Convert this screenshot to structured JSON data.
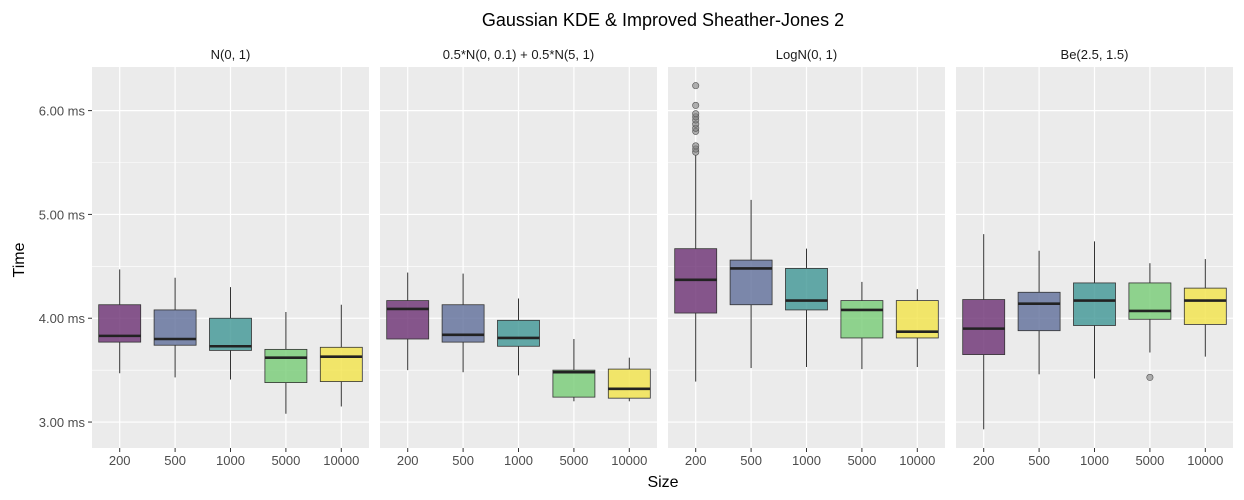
{
  "chart_data": {
    "type": "box",
    "title": "Gaussian KDE & Improved Sheather-Jones 2",
    "xlabel": "Size",
    "ylabel": "Time",
    "categories": [
      "200",
      "500",
      "1000",
      "5000",
      "10000"
    ],
    "y_unit": "ms",
    "y_ticks": [
      "3.00 ms",
      "4.00 ms",
      "5.00 ms",
      "6.00 ms"
    ],
    "y_tick_values": [
      3.0,
      4.0,
      5.0,
      6.0
    ],
    "ylim": [
      2.75,
      6.42
    ],
    "grid": true,
    "colors": [
      "#6b2f73",
      "#5f6e9a",
      "#3e9695",
      "#77cc75",
      "#f3e449"
    ],
    "panels": [
      {
        "label": "N(0, 1)",
        "boxes": [
          {
            "x": "200",
            "whisker_low": 3.47,
            "q1": 3.77,
            "median": 3.83,
            "q3": 4.13,
            "whisker_high": 4.47,
            "outliers": []
          },
          {
            "x": "500",
            "whisker_low": 3.43,
            "q1": 3.74,
            "median": 3.8,
            "q3": 4.08,
            "whisker_high": 4.39,
            "outliers": []
          },
          {
            "x": "1000",
            "whisker_low": 3.41,
            "q1": 3.69,
            "median": 3.73,
            "q3": 4.0,
            "whisker_high": 4.3,
            "outliers": []
          },
          {
            "x": "5000",
            "whisker_low": 3.08,
            "q1": 3.38,
            "median": 3.62,
            "q3": 3.7,
            "whisker_high": 4.06,
            "outliers": []
          },
          {
            "x": "10000",
            "whisker_low": 3.15,
            "q1": 3.39,
            "median": 3.63,
            "q3": 3.72,
            "whisker_high": 4.13,
            "outliers": []
          }
        ]
      },
      {
        "label": "0.5*N(0, 0.1) + 0.5*N(5, 1)",
        "boxes": [
          {
            "x": "200",
            "whisker_low": 3.5,
            "q1": 3.8,
            "median": 4.09,
            "q3": 4.17,
            "whisker_high": 4.44,
            "outliers": []
          },
          {
            "x": "500",
            "whisker_low": 3.48,
            "q1": 3.77,
            "median": 3.84,
            "q3": 4.13,
            "whisker_high": 4.43,
            "outliers": []
          },
          {
            "x": "1000",
            "whisker_low": 3.45,
            "q1": 3.73,
            "median": 3.81,
            "q3": 3.98,
            "whisker_high": 4.19,
            "outliers": []
          },
          {
            "x": "5000",
            "whisker_low": 3.2,
            "q1": 3.24,
            "median": 3.48,
            "q3": 3.5,
            "whisker_high": 3.8,
            "outliers": []
          },
          {
            "x": "10000",
            "whisker_low": 3.2,
            "q1": 3.23,
            "median": 3.32,
            "q3": 3.51,
            "whisker_high": 3.62,
            "outliers": []
          }
        ]
      },
      {
        "label": "LogN(0, 1)",
        "boxes": [
          {
            "x": "200",
            "whisker_low": 3.39,
            "q1": 4.05,
            "median": 4.37,
            "q3": 4.67,
            "whisker_high": 5.57,
            "outliers": [
              5.6,
              5.63,
              5.66,
              5.8,
              5.83,
              5.87,
              5.91,
              5.94,
              5.97,
              6.05,
              6.24
            ]
          },
          {
            "x": "500",
            "whisker_low": 3.52,
            "q1": 4.13,
            "median": 4.48,
            "q3": 4.56,
            "whisker_high": 5.14,
            "outliers": []
          },
          {
            "x": "1000",
            "whisker_low": 3.53,
            "q1": 4.08,
            "median": 4.17,
            "q3": 4.48,
            "whisker_high": 4.67,
            "outliers": []
          },
          {
            "x": "5000",
            "whisker_low": 3.51,
            "q1": 3.81,
            "median": 4.08,
            "q3": 4.17,
            "whisker_high": 4.35,
            "outliers": []
          },
          {
            "x": "10000",
            "whisker_low": 3.53,
            "q1": 3.81,
            "median": 3.87,
            "q3": 4.17,
            "whisker_high": 4.28,
            "outliers": []
          }
        ]
      },
      {
        "label": "Be(2.5, 1.5)",
        "boxes": [
          {
            "x": "200",
            "whisker_low": 2.93,
            "q1": 3.65,
            "median": 3.9,
            "q3": 4.18,
            "whisker_high": 4.81,
            "outliers": []
          },
          {
            "x": "500",
            "whisker_low": 3.46,
            "q1": 3.88,
            "median": 4.14,
            "q3": 4.25,
            "whisker_high": 4.65,
            "outliers": []
          },
          {
            "x": "1000",
            "whisker_low": 3.42,
            "q1": 3.93,
            "median": 4.17,
            "q3": 4.34,
            "whisker_high": 4.74,
            "outliers": []
          },
          {
            "x": "5000",
            "whisker_low": 3.67,
            "q1": 3.99,
            "median": 4.07,
            "q3": 4.34,
            "whisker_high": 4.53,
            "outliers": [
              3.43
            ]
          },
          {
            "x": "10000",
            "whisker_low": 3.63,
            "q1": 3.94,
            "median": 4.17,
            "q3": 4.29,
            "whisker_high": 4.57,
            "outliers": []
          }
        ]
      }
    ]
  }
}
